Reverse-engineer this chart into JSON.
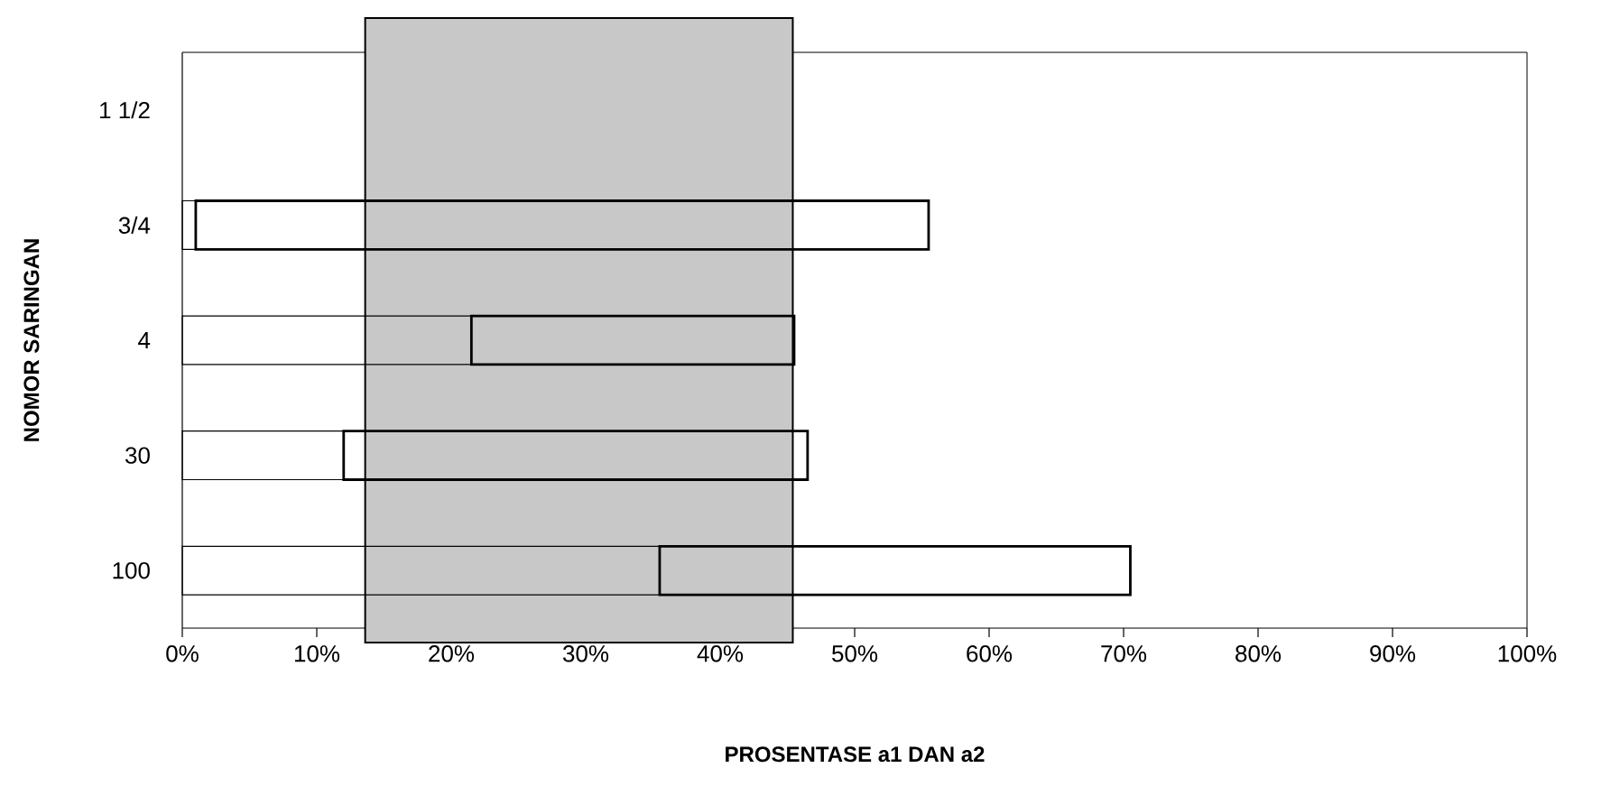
{
  "chart_data": {
    "type": "bar",
    "orientation": "horizontal",
    "stacked": true,
    "xlabel": "PROSENTASE a1 DAN a2",
    "ylabel": "NOMOR SARINGAN",
    "categories": [
      "1 1/2",
      "3/4",
      "4",
      "30",
      "100"
    ],
    "series": [
      {
        "color": "#000000",
        "values": [
          null,
          1,
          21.5,
          12,
          35.5
        ]
      },
      {
        "color": "#000000",
        "values": [
          null,
          54.5,
          24,
          34.5,
          35
        ]
      }
    ],
    "xlim": [
      0,
      100
    ],
    "xticks": [
      {
        "value": 0,
        "label": "0%"
      },
      {
        "value": 10,
        "label": "10%"
      },
      {
        "value": 20,
        "label": "20%"
      },
      {
        "value": 30,
        "label": "30%"
      },
      {
        "value": 40,
        "label": "40%"
      },
      {
        "value": 50,
        "label": "50%"
      },
      {
        "value": 60,
        "label": "60%"
      },
      {
        "value": 70,
        "label": "70%"
      },
      {
        "value": 80,
        "label": "80%"
      },
      {
        "value": 90,
        "label": "90%"
      },
      {
        "value": 100,
        "label": "100%"
      }
    ],
    "bands": [
      {
        "axis": "x",
        "from": 13.6,
        "to": 45.4,
        "color": "#c8c8c8"
      }
    ]
  }
}
